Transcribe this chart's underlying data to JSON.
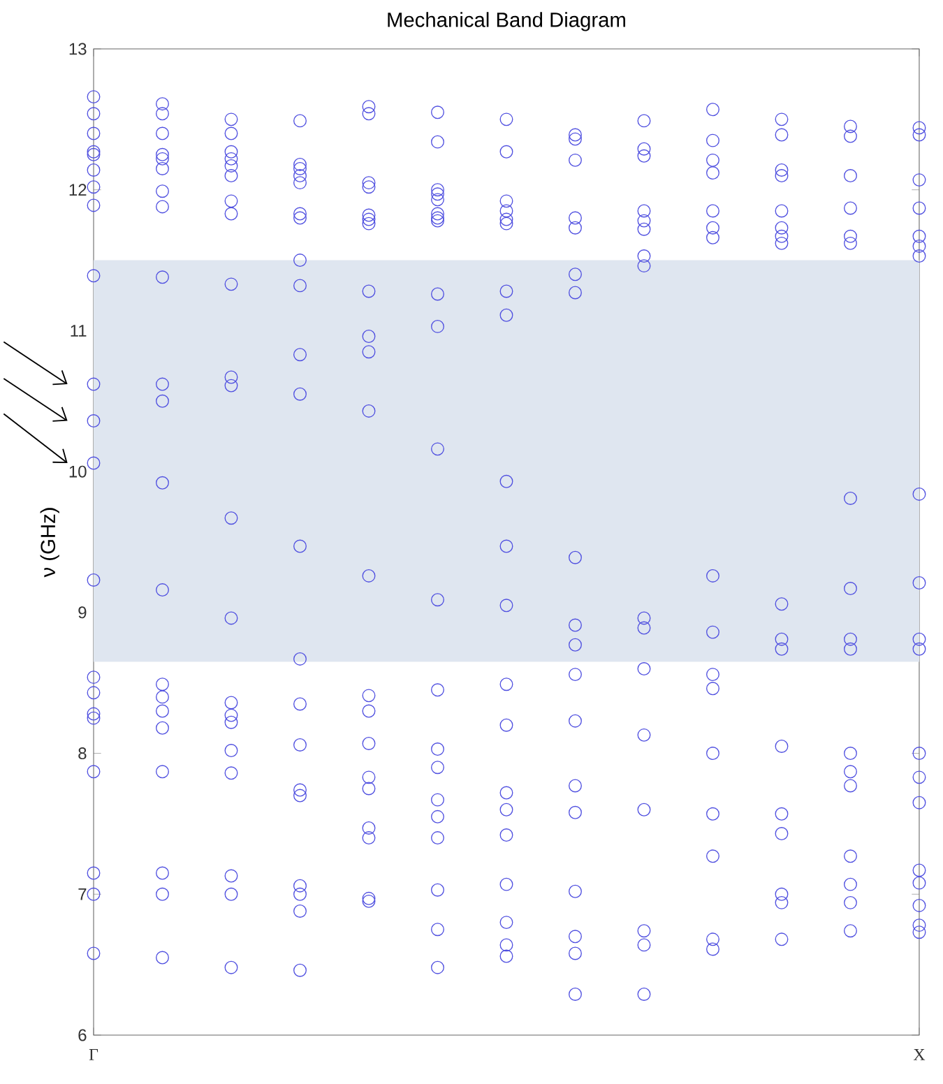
{
  "chart_data": {
    "type": "scatter",
    "title": "Mechanical Band Diagram",
    "ylabel": "ν (GHz)",
    "ylim": [
      6,
      13
    ],
    "categories": [
      "Γ",
      null,
      null,
      null,
      null,
      null,
      null,
      null,
      null,
      null,
      null,
      null,
      "X"
    ],
    "yticks": [
      6,
      7,
      8,
      9,
      10,
      11,
      12,
      13
    ],
    "marker": "circle",
    "bands": [
      {
        "axis": "y",
        "from": 8.65,
        "to": 11.5,
        "color": "#dfe6f0"
      }
    ],
    "series": [
      {
        "color": "#5050e0",
        "values": [
          6.58,
          6.55,
          6.48,
          6.46,
          6.95,
          6.48,
          6.56,
          6.29,
          6.29,
          6.61,
          6.68,
          6.74,
          6.73
        ]
      },
      {
        "color": "#5050e0",
        "values": [
          7.0,
          7.0,
          7.0,
          6.88,
          6.97,
          6.75,
          6.64,
          6.58,
          6.64,
          6.68,
          6.94,
          6.94,
          6.78
        ]
      },
      {
        "color": "#5050e0",
        "values": [
          7.15,
          7.15,
          7.13,
          7.0,
          7.4,
          7.03,
          6.8,
          6.7,
          6.74,
          7.27,
          7.0,
          7.07,
          6.92
        ]
      },
      {
        "color": "#5050e0",
        "values": [
          7.87,
          7.87,
          7.86,
          7.06,
          7.47,
          7.4,
          7.07,
          7.02,
          7.6,
          7.57,
          7.43,
          7.27,
          7.08
        ]
      },
      {
        "color": "#5050e0",
        "values": [
          8.25,
          8.18,
          8.02,
          7.7,
          7.75,
          7.55,
          7.42,
          7.58,
          8.13,
          8.0,
          7.57,
          7.77,
          7.17
        ]
      },
      {
        "color": "#5050e0",
        "values": [
          8.28,
          8.3,
          8.22,
          7.74,
          7.83,
          7.67,
          7.6,
          7.77,
          8.6,
          8.46,
          8.05,
          7.87,
          7.65
        ]
      },
      {
        "color": "#5050e0",
        "values": [
          8.43,
          8.4,
          8.27,
          8.06,
          8.07,
          7.9,
          7.72,
          8.23,
          8.89,
          8.56,
          8.74,
          8.0,
          7.83
        ]
      },
      {
        "color": "#5050e0",
        "values": [
          8.54,
          8.49,
          8.36,
          8.35,
          8.3,
          8.03,
          8.2,
          8.56,
          8.96,
          8.86,
          8.81,
          8.74,
          8.0
        ]
      },
      {
        "color": "#5050e0",
        "values": [
          9.23,
          9.16,
          8.96,
          8.67,
          8.41,
          8.45,
          8.49,
          8.77,
          11.46,
          9.26,
          9.06,
          8.81,
          8.74
        ]
      },
      {
        "color": "#5050e0",
        "values": [
          10.06,
          9.92,
          9.67,
          9.47,
          9.26,
          9.09,
          9.05,
          8.91,
          11.53,
          11.66,
          11.62,
          9.17,
          8.81
        ]
      },
      {
        "color": "#5050e0",
        "values": [
          10.36,
          10.5,
          10.61,
          10.55,
          10.43,
          10.16,
          9.47,
          9.39,
          11.72,
          11.73,
          11.67,
          9.81,
          9.21
        ]
      },
      {
        "color": "#5050e0",
        "values": [
          10.62,
          10.62,
          10.67,
          10.83,
          10.85,
          11.03,
          9.93,
          11.27,
          11.78,
          11.85,
          11.73,
          11.62,
          9.84
        ]
      },
      {
        "color": "#5050e0",
        "values": [
          11.39,
          11.38,
          11.33,
          11.32,
          10.96,
          11.26,
          11.11,
          11.4,
          11.85,
          12.12,
          11.85,
          11.67,
          11.53
        ]
      },
      {
        "color": "#5050e0",
        "values": [
          11.89,
          11.88,
          11.83,
          11.5,
          11.28,
          11.78,
          11.28,
          11.73,
          12.24,
          12.21,
          12.1,
          11.87,
          11.6
        ]
      },
      {
        "color": "#5050e0",
        "values": [
          12.02,
          11.99,
          11.92,
          11.8,
          11.76,
          11.8,
          11.76,
          11.8,
          12.29,
          12.35,
          12.14,
          12.1,
          11.67
        ]
      },
      {
        "color": "#5050e0",
        "values": [
          12.14,
          12.15,
          12.1,
          11.83,
          11.79,
          11.83,
          11.79,
          12.21,
          12.49,
          12.57,
          12.39,
          12.38,
          11.87
        ]
      },
      {
        "color": "#5050e0",
        "values": [
          12.25,
          12.22,
          12.17,
          12.05,
          11.82,
          11.93,
          11.85,
          12.36,
          null,
          null,
          12.5,
          12.45,
          12.07
        ]
      },
      {
        "color": "#5050e0",
        "values": [
          12.27,
          12.25,
          12.22,
          12.1,
          12.02,
          11.97,
          11.92,
          12.39,
          null,
          null,
          null,
          null,
          12.39
        ]
      },
      {
        "color": "#5050e0",
        "values": [
          12.4,
          12.4,
          12.27,
          12.15,
          12.05,
          12.0,
          12.27,
          null,
          null,
          null,
          null,
          null,
          12.44
        ]
      },
      {
        "color": "#5050e0",
        "values": [
          12.54,
          12.54,
          12.4,
          12.18,
          12.54,
          12.34,
          12.5,
          null,
          null,
          null,
          null,
          null,
          null
        ]
      },
      {
        "color": "#5050e0",
        "values": [
          12.66,
          12.61,
          12.5,
          12.49,
          12.59,
          12.55,
          null,
          null,
          null,
          null,
          null,
          null,
          null
        ]
      }
    ]
  }
}
